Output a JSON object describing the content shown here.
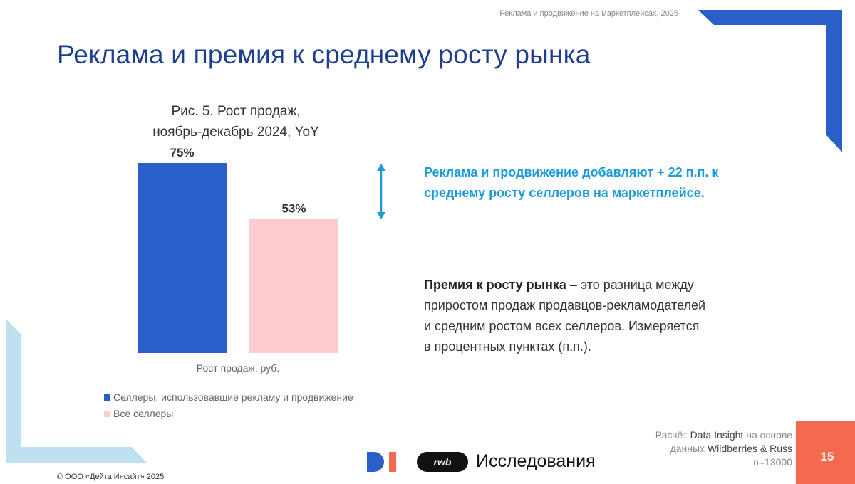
{
  "header_note": "Реклама и продвижение на маркетплейсах, 2025",
  "title": "Реклама и премия к среднему росту рынка",
  "colors": {
    "title": "#1e3f8f",
    "bar_primary": "#2a5ec9",
    "bar_secondary": "#ffccd0",
    "highlight": "#1d9bd7",
    "page_box": "#f36a4e",
    "corner_blue": "#2a5ec9",
    "corner_light": "#bfe0ef"
  },
  "chart_data": {
    "type": "bar",
    "title_line1": "Рис. 5. Рост продаж,",
    "title_line2": "ноябрь-декабрь 2024, YoY",
    "xlabel": "Рост продаж, руб.",
    "ylabel": "",
    "ylim": [
      0,
      75
    ],
    "grid": false,
    "categories": [
      "Рост продаж, руб."
    ],
    "series": [
      {
        "name": "Селлеры, использовавшие рекламу и продвижение",
        "values": [
          75
        ],
        "label": "75%",
        "color": "#2a5ec9"
      },
      {
        "name": "Все селлеры",
        "values": [
          53
        ],
        "label": "53%",
        "color": "#ffccd0"
      }
    ]
  },
  "highlight_text": "Реклама и продвижение добавляют + 22 п.п. к среднему росту селлеров на маркетплейсе.",
  "definition": {
    "term": "Премия к росту рынка",
    "text": " – это разница между приростом продаж продавцов-рекламодателей и средним ростом всех селлеров. Измеряется в процентных пунктах (п.п.)."
  },
  "source": {
    "prefix": "Расчёт ",
    "org": "Data Insight",
    "middle": " на основе данных ",
    "data": "Wildberries & Russ",
    "n": "n=13000"
  },
  "page_number": "15",
  "copyright": "© ООО «Дейта Инсайт» 2025",
  "logos": {
    "di": "DI",
    "rwd": "rwb",
    "research": "Исследования"
  }
}
